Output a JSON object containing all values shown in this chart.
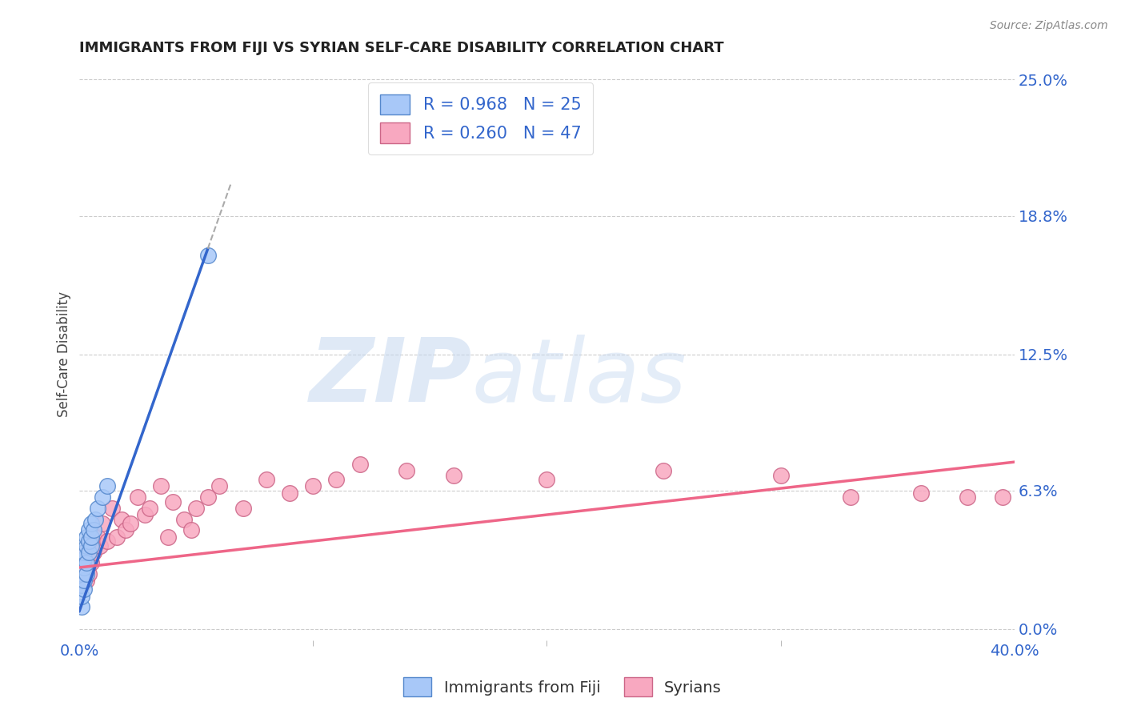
{
  "title": "IMMIGRANTS FROM FIJI VS SYRIAN SELF-CARE DISABILITY CORRELATION CHART",
  "source": "Source: ZipAtlas.com",
  "ylabel": "Self-Care Disability",
  "xlim": [
    0.0,
    0.4
  ],
  "ylim": [
    -0.005,
    0.255
  ],
  "watermark_zip": "ZIP",
  "watermark_atlas": "atlas",
  "watermark_color_zip": "#c5d8f0",
  "watermark_color_atlas": "#c5d8f0",
  "background_color": "#ffffff",
  "grid_color": "#cccccc",
  "fiji_color": "#a8c8f8",
  "fiji_edge_color": "#5588cc",
  "syria_color": "#f8a8c0",
  "syria_edge_color": "#cc6688",
  "fiji_line_color": "#3366cc",
  "fiji_line_dash_color": "#aaaaaa",
  "syria_line_color": "#ee6688",
  "legend_fiji_label": "R = 0.968   N = 25",
  "legend_syria_label": "R = 0.260   N = 47",
  "ytick_positions": [
    0.0,
    0.063,
    0.125,
    0.188,
    0.25
  ],
  "ytick_labels": [
    "0.0%",
    "6.3%",
    "12.5%",
    "18.8%",
    "25.0%"
  ],
  "xtick_positions": [
    0.0,
    0.4
  ],
  "xtick_labels": [
    "0.0%",
    "40.0%"
  ],
  "fiji_x": [
    0.001,
    0.001,
    0.001,
    0.001,
    0.002,
    0.002,
    0.002,
    0.002,
    0.002,
    0.003,
    0.003,
    0.003,
    0.003,
    0.004,
    0.004,
    0.004,
    0.005,
    0.005,
    0.005,
    0.006,
    0.007,
    0.008,
    0.01,
    0.012,
    0.055
  ],
  "fiji_y": [
    0.01,
    0.015,
    0.02,
    0.025,
    0.018,
    0.022,
    0.028,
    0.032,
    0.035,
    0.025,
    0.03,
    0.038,
    0.042,
    0.035,
    0.04,
    0.045,
    0.038,
    0.042,
    0.048,
    0.045,
    0.05,
    0.055,
    0.06,
    0.065,
    0.17
  ],
  "syria_x": [
    0.001,
    0.001,
    0.002,
    0.002,
    0.003,
    0.003,
    0.004,
    0.004,
    0.005,
    0.005,
    0.006,
    0.007,
    0.008,
    0.009,
    0.01,
    0.012,
    0.014,
    0.016,
    0.018,
    0.02,
    0.022,
    0.025,
    0.028,
    0.03,
    0.035,
    0.038,
    0.04,
    0.045,
    0.048,
    0.05,
    0.055,
    0.06,
    0.07,
    0.08,
    0.09,
    0.1,
    0.11,
    0.12,
    0.14,
    0.16,
    0.2,
    0.25,
    0.3,
    0.33,
    0.36,
    0.38,
    0.395
  ],
  "syria_y": [
    0.02,
    0.025,
    0.028,
    0.035,
    0.022,
    0.03,
    0.025,
    0.038,
    0.03,
    0.04,
    0.035,
    0.04,
    0.042,
    0.038,
    0.048,
    0.04,
    0.055,
    0.042,
    0.05,
    0.045,
    0.048,
    0.06,
    0.052,
    0.055,
    0.065,
    0.042,
    0.058,
    0.05,
    0.045,
    0.055,
    0.06,
    0.065,
    0.055,
    0.068,
    0.062,
    0.065,
    0.068,
    0.075,
    0.072,
    0.07,
    0.068,
    0.072,
    0.07,
    0.06,
    0.062,
    0.06,
    0.06
  ],
  "fiji_line_x_start": 0.0,
  "fiji_line_x_solid_end": 0.055,
  "fiji_line_x_dash_end": 0.065,
  "fiji_line_slope": 3.0,
  "fiji_line_intercept": 0.008,
  "syria_line_slope": 0.12,
  "syria_line_intercept": 0.028
}
